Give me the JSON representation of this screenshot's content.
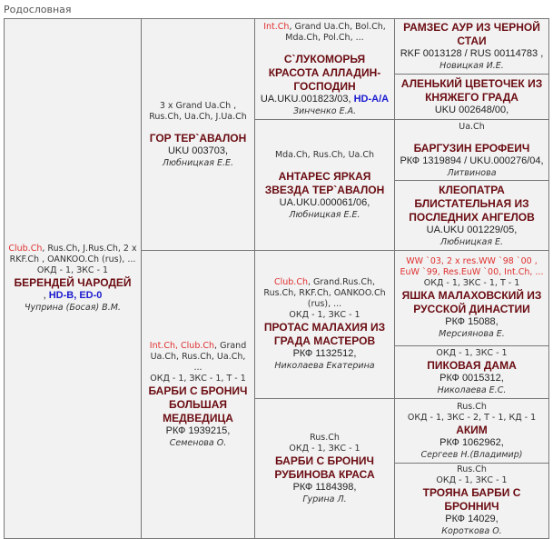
{
  "section_title": "Родословная",
  "dogs": {
    "sire": {
      "titles": [
        {
          "text": "Club.Ch",
          "red": true
        },
        {
          "text": ", Rus.Ch, J.Rus.Ch, 2 x RKF.Ch , OANKOO.Ch (rus), ...",
          "red": false
        }
      ],
      "marks": "ОКД - 1, ЗКС - 1",
      "name": "БЕРЕНДЕЙ ЧАРОДЕЙ",
      "reg": ",",
      "health": "HD-B, ED-0",
      "owner": "Чуприна (Босая) В.М."
    },
    "ss": {
      "titles": [
        {
          "text": "3 x Grand Ua.Ch , Rus.Ch, Ua.Ch, J.Ua.Ch",
          "red": false
        }
      ],
      "name": "ГОР ТЕР`АВАЛОН",
      "reg": "UKU 003703,",
      "owner": "Любницкая Е.Е."
    },
    "sd": {
      "titles": [
        {
          "text": "Int.Ch",
          "red": true
        },
        {
          "text": ", Club.Ch",
          "red": true
        },
        {
          "text": ", Grand Ua.Ch, Rus.Ch, Ua.Ch, ...",
          "red": false
        }
      ],
      "marks": "ОКД - 1, ЗКС - 1, Т - 1",
      "name": "БАРБИ С БРОНИЧ БОЛЬШАЯ МЕДВЕДИЦА",
      "reg": "РКФ 1939215,",
      "owner": "Семенова О."
    },
    "sss": {
      "titles": [
        {
          "text": "Int.Ch",
          "red": true
        },
        {
          "text": ", Grand Ua.Ch, Bol.Ch, Mda.Ch, Pol.Ch, ...",
          "red": false
        }
      ],
      "name": "С`ЛУКОМОРЬЯ КРАСОТА АЛЛАДИН-ГОСПОДИН",
      "reg": "UA.UKU.001823/03,",
      "health": "HD-A/A",
      "owner": "Зинченко Е.А."
    },
    "ssd": {
      "titles": [
        {
          "text": "Mda.Ch, Rus.Ch, Ua.Ch",
          "red": false
        }
      ],
      "name": "АНТАРЕС ЯРКАЯ ЗВЕЗДА ТЕР`АВАЛОН",
      "reg": "UA.UKU.000061/06,",
      "owner": "Любницкая Е.Е."
    },
    "sds": {
      "titles": [
        {
          "text": "Club.Ch",
          "red": true
        },
        {
          "text": ", Grand.Rus.Ch, Rus.Ch, RKF.Ch, OANKOO.Ch (rus), ...",
          "red": false
        }
      ],
      "marks": "ОКД - 1, ЗКС - 1",
      "name": "ПРОТАС МАЛАХИЯ ИЗ ГРАДА МАСТЕРОВ",
      "reg": "РКФ 1132512,",
      "owner": "Николаева Екатерина"
    },
    "sdd": {
      "titles": [
        {
          "text": "Rus.Ch",
          "red": false
        }
      ],
      "marks": "ОКД - 1, ЗКС - 1",
      "name": "БАРБИ С БРОНИЧ РУБИНОВА КРАСА",
      "reg": "РКФ 1184398,",
      "owner": "Гурина Л."
    },
    "g1": {
      "name": "РАМЗЕС АУР ИЗ ЧЕРНОЙ СТАИ",
      "reg": "RKF 0013128 / RUS 00114783 ,",
      "owner": "Новицкая И.Е."
    },
    "g2": {
      "name": "АЛЕНЬКИЙ ЦВЕТОЧЕК ИЗ КНЯЖЕГО ГРАДА",
      "reg": "UKU 002648/00,"
    },
    "g3": {
      "titles": [
        {
          "text": "Ua.Ch",
          "red": false
        }
      ],
      "name": "БАРГУЗИН ЕРОФЕИЧ",
      "reg": "РКФ 1319894 / UKU.000276/04,",
      "owner": "Литвинова"
    },
    "g4": {
      "name": "КЛЕОПАТРА БЛИСТАТЕЛЬНАЯ ИЗ ПОСЛЕДНИХ АНГЕЛОВ",
      "reg": "UA.UKU 001229/05,",
      "owner": "Любницкая Е."
    },
    "g5": {
      "titles": [
        {
          "text": "WW `03, 2 x res.WW `98 `00 , EuW `99, Res.EuW `00, Int.Ch, ...",
          "red": true
        }
      ],
      "marks": "ОКД - 1, ЗКС - 1, Т - 1",
      "name": "ЯШКА МАЛАХОВСКИЙ ИЗ РУССКОЙ ДИНАСТИИ",
      "reg": "РКФ 15088,",
      "owner": "Мерсиянова Е."
    },
    "g6": {
      "marks": "ОКД - 1, ЗКС - 1",
      "name": "ПИКОВАЯ ДАМА",
      "reg": "РКФ 0015312,",
      "owner": "Николаева Е.С."
    },
    "g7": {
      "titles": [
        {
          "text": "Rus.Ch",
          "red": false
        }
      ],
      "marks": "ОКД - 1, ЗКС - 2, Т - 1, КД - 1",
      "name": "АКИМ",
      "reg": "РКФ 1062962,",
      "owner": "Сергеев Н.(Владимир)"
    },
    "g8": {
      "titles": [
        {
          "text": "Rus.Ch",
          "red": false
        }
      ],
      "marks": "ОКД - 1, ЗКС - 1",
      "name": "ТРОЯНА БАРБИ С БРОННИЧ",
      "reg": "РКФ 14029,",
      "owner": "Короткова О."
    }
  },
  "colors": {
    "name": "#6b0c12",
    "title_red": "#e03030",
    "health": "#1a1ad0",
    "cell_bg": "#f2f2f2",
    "border": "#777777"
  }
}
